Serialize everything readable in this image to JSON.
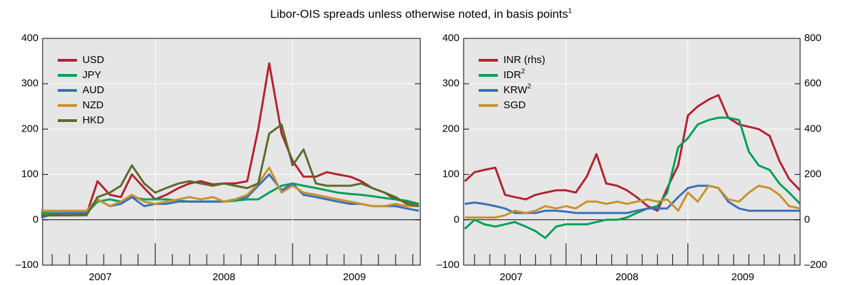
{
  "title": "Libor-OIS spreads unless otherwise noted, in basis points",
  "title_footnote": "1",
  "chart_data": [
    {
      "type": "line",
      "x": [
        2007.17,
        2007.25,
        2007.33,
        2007.42,
        2007.5,
        2007.58,
        2007.67,
        2007.75,
        2007.83,
        2007.92,
        2008.0,
        2008.08,
        2008.17,
        2008.25,
        2008.33,
        2008.42,
        2008.5,
        2008.58,
        2008.67,
        2008.75,
        2008.83,
        2008.92,
        2009.0,
        2009.08,
        2009.17,
        2009.25,
        2009.33,
        2009.42,
        2009.5,
        2009.58,
        2009.67,
        2009.75,
        2009.83,
        2009.92
      ],
      "xlim": [
        2007.18,
        2009.93
      ],
      "xticks": [
        {
          "value": 2007.6,
          "label": "2007"
        },
        {
          "value": 2008.5,
          "label": "2008"
        },
        {
          "value": 2009.45,
          "label": "2009"
        }
      ],
      "xgrid": [
        2008,
        2009
      ],
      "xminorticks": [
        2007.25,
        2007.375,
        2007.5,
        2007.625,
        2007.75,
        2007.875,
        2008.125,
        2008.25,
        2008.375,
        2008.5,
        2008.625,
        2008.75,
        2008.875,
        2009.125,
        2009.25,
        2009.375,
        2009.5,
        2009.625,
        2009.75,
        2009.875
      ],
      "ylim": [
        -100,
        400
      ],
      "yticks": [
        {
          "value": -100,
          "label": "–100"
        },
        0,
        100,
        200,
        300,
        400
      ],
      "grid": true,
      "legend": "top-left",
      "series": [
        {
          "name": "USD",
          "color": "#b5202e",
          "values": [
            10,
            10,
            10,
            10,
            12,
            85,
            55,
            50,
            100,
            70,
            45,
            55,
            70,
            80,
            85,
            78,
            80,
            80,
            85,
            200,
            345,
            190,
            130,
            95,
            95,
            105,
            100,
            95,
            85,
            70,
            60,
            45,
            40,
            35
          ]
        },
        {
          "name": "JPY",
          "color": "#00a05a",
          "values": [
            15,
            15,
            15,
            15,
            15,
            40,
            45,
            40,
            50,
            45,
            45,
            45,
            42,
            40,
            40,
            40,
            40,
            42,
            45,
            45,
            60,
            75,
            80,
            75,
            70,
            65,
            60,
            57,
            55,
            52,
            48,
            45,
            42,
            35
          ]
        },
        {
          "name": "AUD",
          "color": "#3a6fb7",
          "values": [
            5,
            12,
            15,
            15,
            15,
            45,
            30,
            35,
            50,
            30,
            35,
            35,
            40,
            40,
            40,
            40,
            40,
            45,
            50,
            75,
            100,
            65,
            80,
            55,
            50,
            45,
            40,
            35,
            35,
            30,
            30,
            30,
            25,
            20
          ]
        },
        {
          "name": "NZD",
          "color": "#c8912d",
          "values": [
            20,
            20,
            20,
            20,
            20,
            45,
            30,
            40,
            55,
            40,
            35,
            40,
            45,
            50,
            45,
            50,
            40,
            45,
            55,
            80,
            115,
            60,
            75,
            60,
            55,
            50,
            45,
            40,
            35,
            30,
            30,
            35,
            30,
            30
          ]
        },
        {
          "name": "HKD",
          "color": "#5a6b2a",
          "values": [
            10,
            10,
            10,
            10,
            10,
            50,
            60,
            75,
            120,
            80,
            60,
            70,
            80,
            85,
            80,
            75,
            80,
            75,
            70,
            80,
            190,
            210,
            120,
            155,
            80,
            75,
            75,
            75,
            80,
            70,
            60,
            50,
            35,
            30
          ]
        }
      ]
    },
    {
      "type": "line",
      "x": [
        2007.17,
        2007.25,
        2007.33,
        2007.42,
        2007.5,
        2007.58,
        2007.67,
        2007.75,
        2007.83,
        2007.92,
        2008.0,
        2008.08,
        2008.17,
        2008.25,
        2008.33,
        2008.42,
        2008.5,
        2008.58,
        2008.67,
        2008.75,
        2008.83,
        2008.92,
        2009.0,
        2009.08,
        2009.17,
        2009.25,
        2009.33,
        2009.42,
        2009.5,
        2009.58,
        2009.67,
        2009.75,
        2009.83,
        2009.92
      ],
      "xlim": [
        2007.16,
        2009.92
      ],
      "xticks": [
        {
          "value": 2007.55,
          "label": "2007"
        },
        {
          "value": 2008.5,
          "label": "2008"
        },
        {
          "value": 2009.45,
          "label": "2009"
        }
      ],
      "xgrid": [
        2008,
        2009
      ],
      "xminorticks": [
        2007.25,
        2007.375,
        2007.5,
        2007.625,
        2007.75,
        2007.875,
        2008.125,
        2008.25,
        2008.375,
        2008.5,
        2008.625,
        2008.75,
        2008.875,
        2009.125,
        2009.25,
        2009.375,
        2009.5,
        2009.625,
        2009.75,
        2009.875
      ],
      "ylim": [
        -100,
        400
      ],
      "yticks": [
        {
          "value": -100,
          "label": "–100"
        },
        0,
        100,
        200,
        300,
        400
      ],
      "y2lim": [
        -200,
        800
      ],
      "y2ticks": [
        {
          "value": -200,
          "label": "–200"
        },
        0,
        200,
        400,
        600,
        800
      ],
      "grid": true,
      "legend": "top-left",
      "series": [
        {
          "name": "INR (rhs)",
          "color": "#b5202e",
          "axis": "y2",
          "values": [
            170,
            210,
            220,
            230,
            110,
            100,
            90,
            110,
            120,
            130,
            130,
            120,
            190,
            290,
            160,
            150,
            130,
            100,
            60,
            40,
            140,
            240,
            460,
            500,
            530,
            550,
            450,
            420,
            410,
            400,
            370,
            260,
            180,
            130
          ]
        },
        {
          "name": "IDR",
          "footnote": "2",
          "color": "#00a05a",
          "values": [
            -20,
            0,
            -10,
            -15,
            -10,
            -5,
            -15,
            -25,
            -40,
            -15,
            -10,
            -10,
            -10,
            -5,
            0,
            0,
            5,
            15,
            25,
            30,
            60,
            160,
            180,
            210,
            220,
            225,
            225,
            220,
            150,
            120,
            110,
            80,
            60,
            35
          ]
        },
        {
          "name": "KRW",
          "footnote": "2",
          "color": "#3a6fb7",
          "values": [
            35,
            38,
            35,
            30,
            25,
            15,
            15,
            15,
            20,
            20,
            18,
            15,
            15,
            15,
            15,
            15,
            15,
            20,
            25,
            25,
            25,
            50,
            70,
            75,
            75,
            70,
            40,
            25,
            20,
            20,
            20,
            20,
            20,
            20
          ]
        },
        {
          "name": "SGD",
          "color": "#c8912d",
          "values": [
            5,
            5,
            5,
            5,
            10,
            20,
            15,
            20,
            30,
            25,
            30,
            25,
            40,
            40,
            35,
            40,
            35,
            40,
            45,
            40,
            45,
            20,
            60,
            40,
            75,
            70,
            45,
            40,
            60,
            75,
            70,
            55,
            30,
            25
          ]
        }
      ]
    }
  ]
}
